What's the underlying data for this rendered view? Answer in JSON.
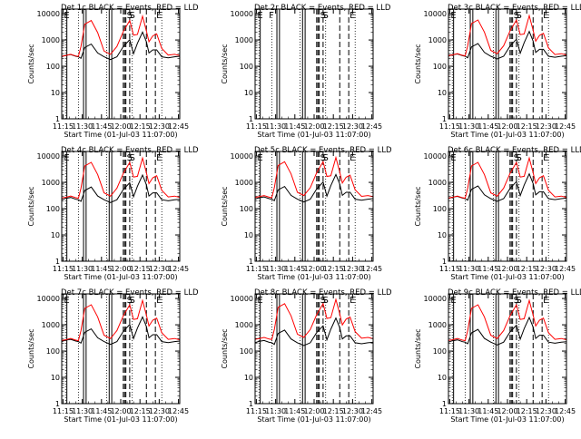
{
  "chart_data": {
    "type": "line",
    "layout": "3x3 grid",
    "ylabel": "Counts/sec",
    "xlabel": "Start Time (01-Jul-03 11:07:00)",
    "y_scale": "log",
    "ylim": [
      1,
      15000
    ],
    "y_ticks": [
      1,
      10,
      100,
      1000,
      10000
    ],
    "y_tick_labels": [
      "1",
      "10",
      "100",
      "1000",
      "10000"
    ],
    "x_range_min": [
      7,
      99
    ],
    "x_ticks_min": [
      8,
      23,
      38,
      53,
      68,
      83,
      98
    ],
    "x_tick_labels": [
      "11:15",
      "11:30",
      "11:45",
      "12:00",
      "12:15",
      "12:30",
      "12:45"
    ],
    "legend": "BLACK = Events, RED = LLD",
    "series_names": [
      "Events",
      "LLD"
    ],
    "series_colors": [
      "#000000",
      "#ff0000"
    ],
    "x_min": [
      7,
      8,
      10,
      14,
      18,
      20,
      22,
      25,
      30,
      35,
      40,
      45,
      50,
      55,
      60,
      63,
      66,
      70,
      73,
      75,
      78,
      81,
      85,
      90,
      95,
      99
    ],
    "events_profile": [
      230,
      240,
      260,
      280,
      240,
      230,
      200,
      520,
      700,
      320,
      230,
      180,
      230,
      560,
      1020,
      300,
      750,
      2000,
      850,
      320,
      420,
      420,
      230,
      210,
      230,
      240
    ],
    "lld_profile": [
      250,
      260,
      270,
      300,
      260,
      250,
      600,
      4200,
      5800,
      2000,
      400,
      300,
      600,
      2200,
      5800,
      1600,
      1700,
      8400,
      2300,
      900,
      1500,
      1800,
      500,
      280,
      300,
      270
    ],
    "panels": [
      {
        "title": "Det 1c BLACK = Events, RED = LLD",
        "scale_events": 1.0,
        "scale_lld": 0.95,
        "marker_labels": [
          "E",
          "S",
          "S",
          "E"
        ]
      },
      {
        "title": "Det 2r BLACK = Events, RED = LLD",
        "scale_events": 0,
        "scale_lld": 0,
        "marker_labels": [
          "E",
          "F",
          "S",
          "S",
          "E"
        ]
      },
      {
        "title": "Det 3c BLACK = Events, RED = LLD",
        "scale_events": 1.05,
        "scale_lld": 1.0,
        "marker_labels": [
          "E",
          "S",
          "S",
          "E"
        ]
      },
      {
        "title": "Det 4c BLACK = Events, RED = LLD",
        "scale_events": 0.95,
        "scale_lld": 1.0,
        "marker_labels": [
          "E",
          "S",
          "S",
          "E"
        ]
      },
      {
        "title": "Det 5c BLACK = Events, RED = LLD",
        "scale_events": 1.0,
        "scale_lld": 1.05,
        "marker_labels": [
          "E",
          "S",
          "S",
          "E"
        ]
      },
      {
        "title": "Det 6c BLACK = Events, RED = LLD",
        "scale_events": 1.05,
        "scale_lld": 1.0,
        "marker_labels": [
          "E",
          "S",
          "S",
          "E"
        ]
      },
      {
        "title": "Det 7c BLACK = Events, RED = LLD",
        "scale_events": 1.0,
        "scale_lld": 1.0,
        "marker_labels": [
          "E",
          "S",
          "S",
          "E"
        ]
      },
      {
        "title": "Det 8c BLACK = Events, RED = LLD",
        "scale_events": 0.9,
        "scale_lld": 1.1,
        "marker_labels": [
          "E",
          "S",
          "S",
          "E"
        ]
      },
      {
        "title": "Det 9c BLACK = Events, RED = LLD",
        "scale_events": 0.95,
        "scale_lld": 1.0,
        "marker_labels": [
          "E",
          "S",
          "S",
          "E"
        ]
      }
    ],
    "markers": {
      "solid_min": [
        11,
        24,
        26,
        44,
        46
      ],
      "long_dash_min": [
        55,
        56,
        57,
        60,
        73,
        80
      ],
      "dotted_min": [
        10,
        20,
        42,
        62,
        85
      ]
    }
  }
}
